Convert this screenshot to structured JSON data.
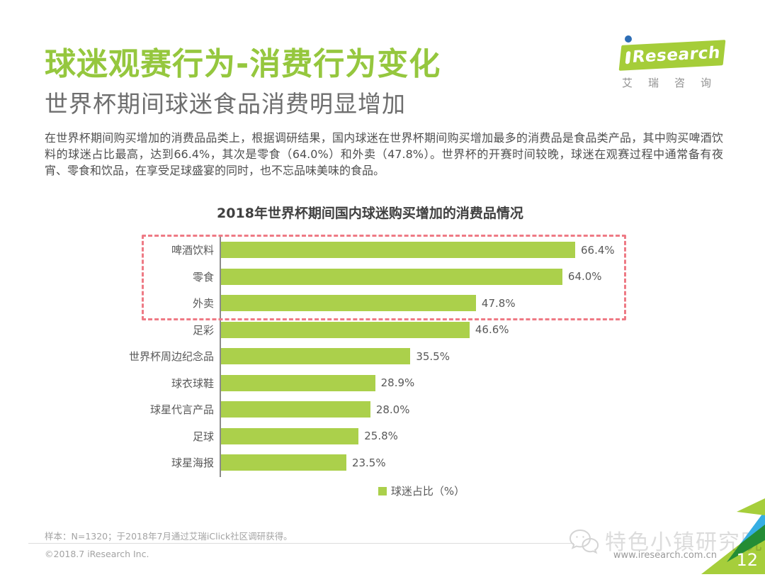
{
  "page": {
    "title": "球迷观赛行为-消费行为变化",
    "subtitle": "世界杯期间球迷食品消费明显增加",
    "body": "在世界杯期间购买增加的消费品品类上，根据调研结果，国内球迷在世界杯期间购买增加最多的消费品是食品类产品，其中购买啤酒饮料的球迷占比最高，达到66.4%，其次是零食（64.0%）和外卖（47.8%）。世界杯的开赛时间较晚，球迷在观赛过程中通常备有夜宵、零食和饮品，在享受足球盛宴的同时，也不忘品味美味的食品。",
    "page_number": "12"
  },
  "logo": {
    "brand_rest": "Research",
    "brand_cn": "艾瑞咨询"
  },
  "chart_data": {
    "type": "bar",
    "orientation": "horizontal",
    "title": "2018年世界杯期间国内球迷购买增加的消费品情况",
    "categories": [
      "啤酒饮料",
      "零食",
      "外卖",
      "足彩",
      "世界杯周边纪念品",
      "球衣球鞋",
      "球星代言产品",
      "足球",
      "球星海报"
    ],
    "values": [
      66.4,
      64.0,
      47.8,
      46.6,
      35.5,
      28.9,
      28.0,
      25.8,
      23.5
    ],
    "value_labels": [
      "66.4%",
      "64.0%",
      "47.8%",
      "46.6%",
      "35.5%",
      "28.9%",
      "28.0%",
      "25.8%",
      "23.5%"
    ],
    "legend": "球迷占比（%）",
    "unit": "percent",
    "xlim": [
      0,
      88
    ],
    "grid": false,
    "legend_position": "bottom-center",
    "bar_color": "#abd04b",
    "highlight_box_rows": [
      0,
      1,
      2
    ],
    "highlight_box_color": "#ee7a85"
  },
  "footer": {
    "note": "样本：N=1320；于2018年7月通过艾瑞iClick社区调研获得。",
    "copyright": "©2018.7 iResearch Inc.",
    "url": "www.iresearch.com.cn",
    "watermark": "特色小镇研究院"
  },
  "colors": {
    "title_green": "#95c73e",
    "bar_green": "#abd04b",
    "logo_green": "#a5cd39",
    "logo_dot_blue": "#2d6db5",
    "dashed_pink": "#ee7a85",
    "corner_blue": "#36aee3"
  }
}
